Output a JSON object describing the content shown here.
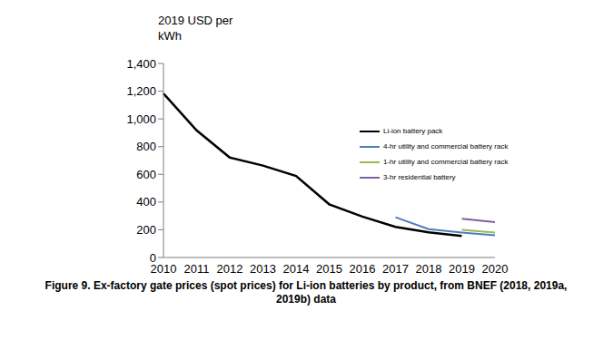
{
  "chart_data": {
    "type": "line",
    "title": "Figure 9. Ex-factory gate prices (spot prices) for Li-ion batteries by product, from BNEF (2018, 2019a, 2019b) data",
    "ylabel": "2019 USD per kWh",
    "categories": [
      "2010",
      "2011",
      "2012",
      "2013",
      "2014",
      "2015",
      "2016",
      "2017",
      "2018",
      "2019",
      "2020"
    ],
    "series": [
      {
        "name": "Li-ion battery pack",
        "color": "#000000",
        "values": [
          1183,
          917,
          721,
          663,
          588,
          384,
          295,
          221,
          181,
          156,
          null
        ]
      },
      {
        "name": "4-hr utility and commercial battery rack",
        "color": "#4a7ebb",
        "values": [
          null,
          null,
          null,
          null,
          null,
          null,
          null,
          290,
          205,
          180,
          160
        ]
      },
      {
        "name": "1-hr utility and commercial battery rack",
        "color": "#98b954",
        "values": [
          null,
          null,
          null,
          null,
          null,
          null,
          null,
          null,
          null,
          200,
          180
        ]
      },
      {
        "name": "3-hr residential battery",
        "color": "#7d60a0",
        "values": [
          null,
          null,
          null,
          null,
          null,
          null,
          null,
          null,
          null,
          280,
          255
        ]
      }
    ],
    "ylim": [
      0,
      1400
    ],
    "yticks": [
      0,
      200,
      400,
      600,
      800,
      {
        "value": 1000,
        "label": "1,000"
      },
      {
        "value": 1200,
        "label": "1,200"
      },
      {
        "value": 1400,
        "label": "1,400"
      }
    ],
    "grid": false,
    "legend": "right"
  }
}
